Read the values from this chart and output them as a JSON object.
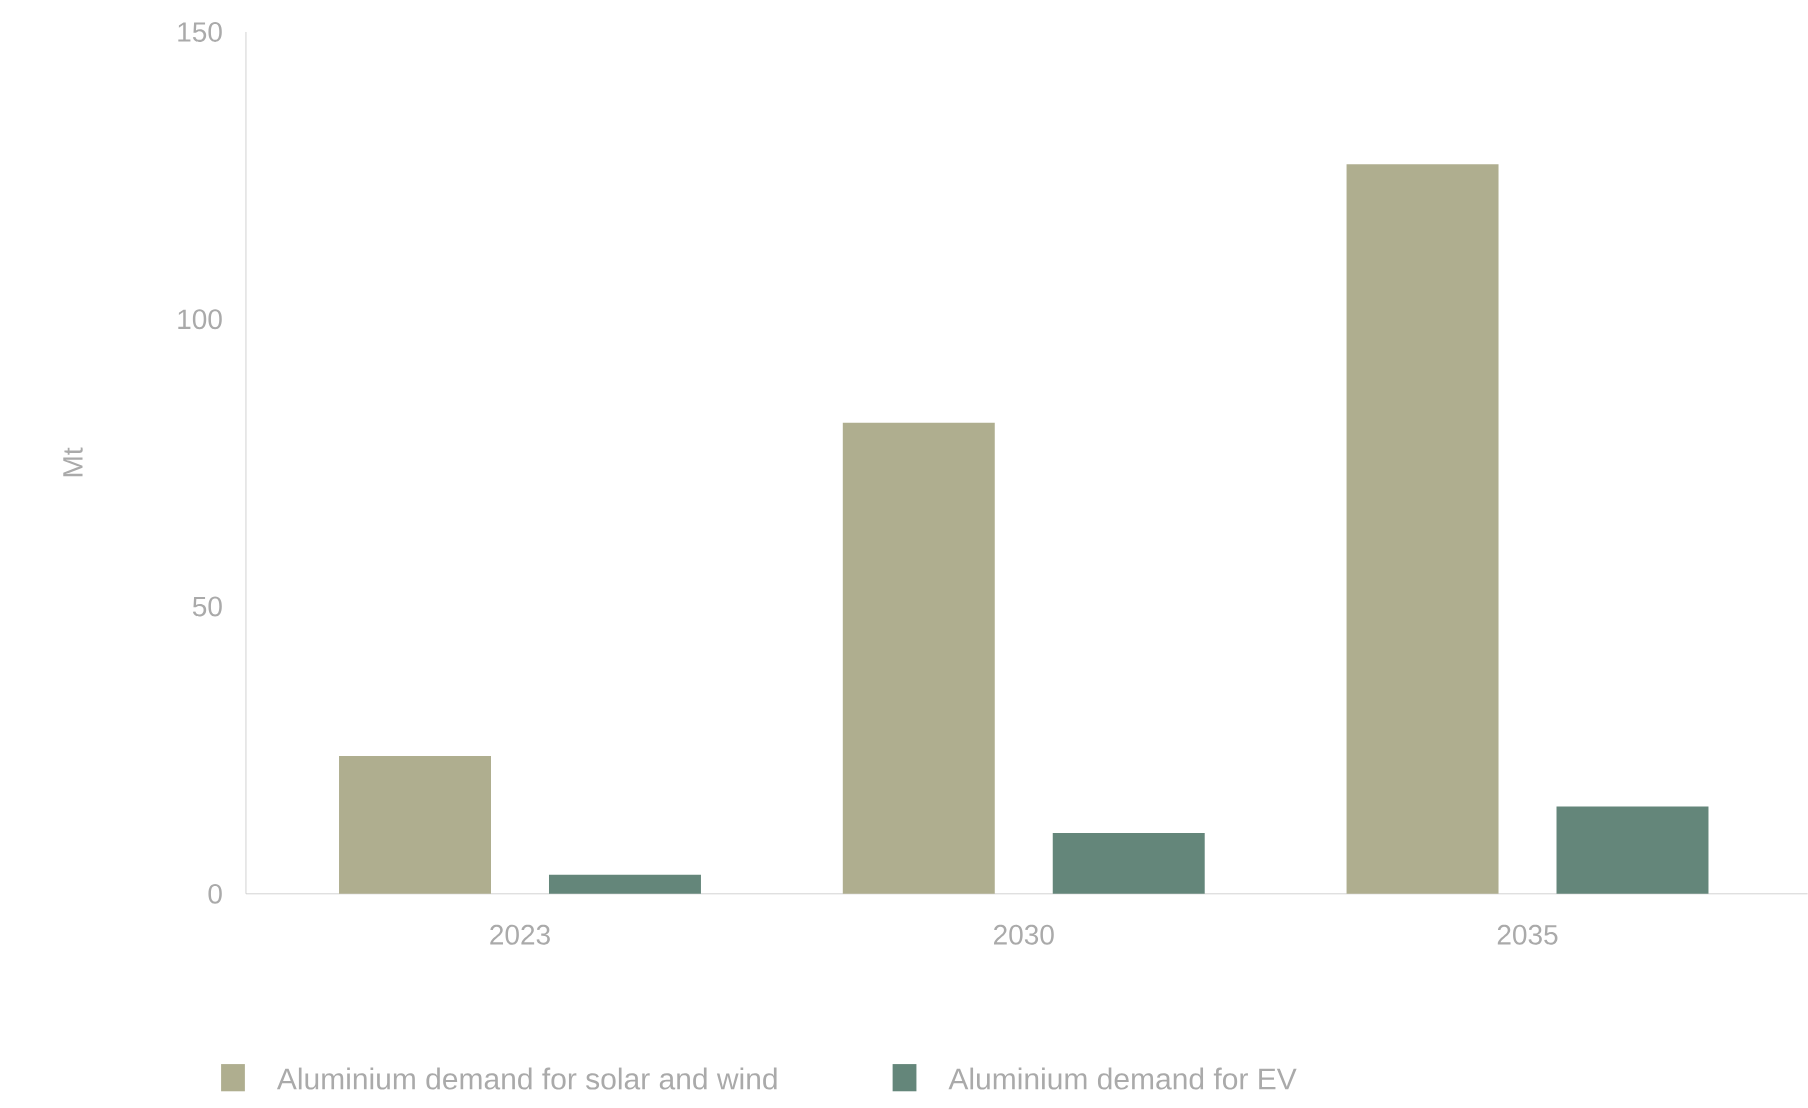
{
  "chart_data": {
    "type": "bar",
    "ylabel": "Mt",
    "categories": [
      "2023",
      "2030",
      "2035"
    ],
    "series": [
      {
        "name": "Aluminium demand for solar and wind",
        "color": "#afae8f",
        "values": [
          24,
          82,
          127
        ]
      },
      {
        "name": "Aluminium demand for EV",
        "color": "#64867a",
        "values": [
          3.3,
          10.6,
          15.2
        ]
      }
    ],
    "ylim": [
      0,
      150
    ],
    "yticks": [
      0,
      50,
      100,
      150
    ],
    "legend": "bottom"
  }
}
